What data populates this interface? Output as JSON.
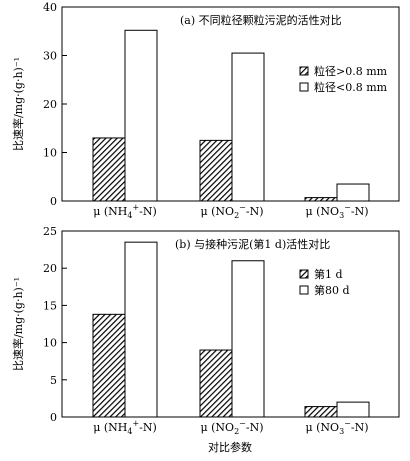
{
  "chart_data": [
    {
      "type": "bar",
      "annotation": "(a) 不同粒径颗粒污泥的活性对比",
      "ylabel": "比速率/mg·(g·h)⁻¹",
      "ylim": [
        0,
        40
      ],
      "yticks": [
        "0",
        "10",
        "20",
        "30",
        "40"
      ],
      "categories": [
        {
          "pre": "μ (NH",
          "sup": "+",
          "sub": "4",
          "post": "-N)"
        },
        {
          "pre": "μ (NO",
          "sup": "−",
          "sub": "2",
          "post": "-N)"
        },
        {
          "pre": "μ (NO",
          "sup": "−",
          "sub": "3",
          "post": "-N)"
        }
      ],
      "series": [
        {
          "name": "粒径>0.8 mm",
          "pattern": "hatched",
          "values": [
            13.0,
            12.5,
            0.7
          ]
        },
        {
          "name": "粒径<0.8 mm",
          "pattern": "open",
          "values": [
            35.2,
            30.5,
            3.5
          ]
        }
      ],
      "legend": "right",
      "xlabel": ""
    },
    {
      "type": "bar",
      "annotation": "(b) 与接种污泥(第1 d)活性对比",
      "ylabel": "比速率/mg·(g·h)⁻¹",
      "ylim": [
        0,
        25
      ],
      "yticks": [
        "0",
        "5",
        "10",
        "15",
        "20",
        "25"
      ],
      "categories": [
        {
          "pre": "μ (NH",
          "sup": "+",
          "sub": "4",
          "post": "-N)"
        },
        {
          "pre": "μ (NO",
          "sup": "−",
          "sub": "2",
          "post": "-N)"
        },
        {
          "pre": "μ (NO",
          "sup": "−",
          "sub": "3",
          "post": "-N)"
        }
      ],
      "series": [
        {
          "name": "第1 d",
          "pattern": "hatched",
          "values": [
            13.8,
            9.0,
            1.4
          ]
        },
        {
          "name": "第80 d",
          "pattern": "open",
          "values": [
            23.5,
            21.0,
            2.0
          ]
        }
      ],
      "legend": "right",
      "xlabel": "对比参数"
    }
  ]
}
